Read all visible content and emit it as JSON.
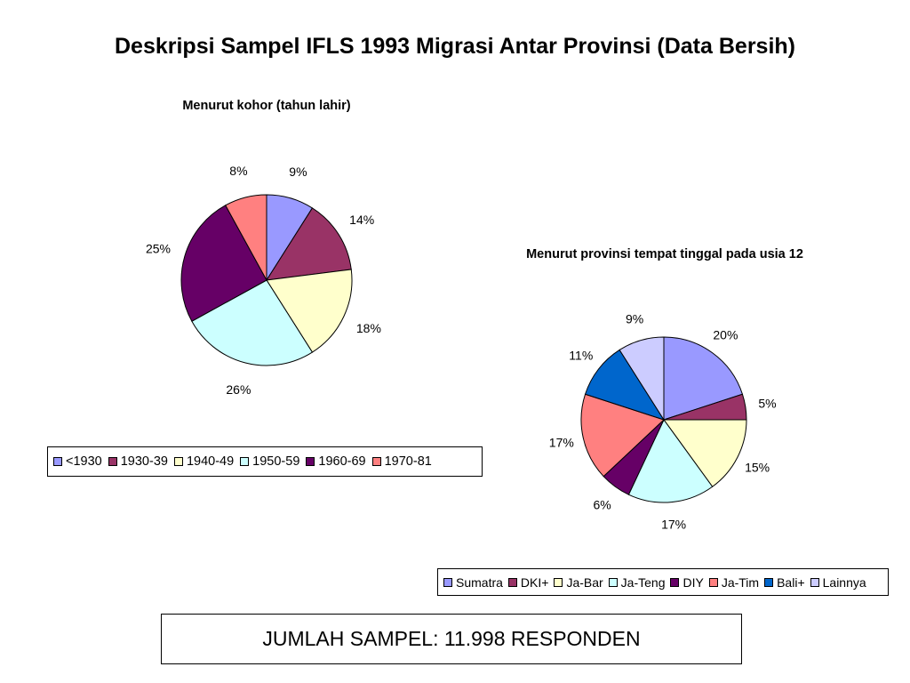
{
  "title": "Deskripsi Sampel IFLS 1993 Migrasi Antar Provinsi (Data Bersih)",
  "footer": "JUMLAH SAMPEL: 11.998 RESPONDEN",
  "chart_data": [
    {
      "type": "pie",
      "title": "Menurut kohor (tahun lahir)",
      "legend_position": "bottom",
      "series": [
        {
          "name": "<1930",
          "value": 9,
          "label": "9%",
          "color": "#9999ff"
        },
        {
          "name": "1930-39",
          "value": 14,
          "label": "14%",
          "color": "#993366"
        },
        {
          "name": "1940-49",
          "value": 18,
          "label": "18%",
          "color": "#ffffcc"
        },
        {
          "name": "1950-59",
          "value": 26,
          "label": "26%",
          "color": "#ccffff"
        },
        {
          "name": "1960-69",
          "value": 25,
          "label": "25%",
          "color": "#660066"
        },
        {
          "name": "1970-81",
          "value": 8,
          "label": "8%",
          "color": "#ff8080"
        }
      ]
    },
    {
      "type": "pie",
      "title": "Menurut provinsi tempat tinggal pada usia 12",
      "legend_position": "bottom",
      "series": [
        {
          "name": "Sumatra",
          "value": 20,
          "label": "20%",
          "color": "#9999ff"
        },
        {
          "name": "DKI+",
          "value": 5,
          "label": "5%",
          "color": "#993366"
        },
        {
          "name": "Ja-Bar",
          "value": 15,
          "label": "15%",
          "color": "#ffffcc"
        },
        {
          "name": "Ja-Teng",
          "value": 17,
          "label": "17%",
          "color": "#ccffff"
        },
        {
          "name": "DIY",
          "value": 6,
          "label": "6%",
          "color": "#660066"
        },
        {
          "name": "Ja-Tim",
          "value": 17,
          "label": "17%",
          "color": "#ff8080"
        },
        {
          "name": "Bali+",
          "value": 11,
          "label": "11%",
          "color": "#0066cc"
        },
        {
          "name": "Lainnya",
          "value": 9,
          "label": "9%",
          "color": "#ccccff"
        }
      ]
    }
  ]
}
